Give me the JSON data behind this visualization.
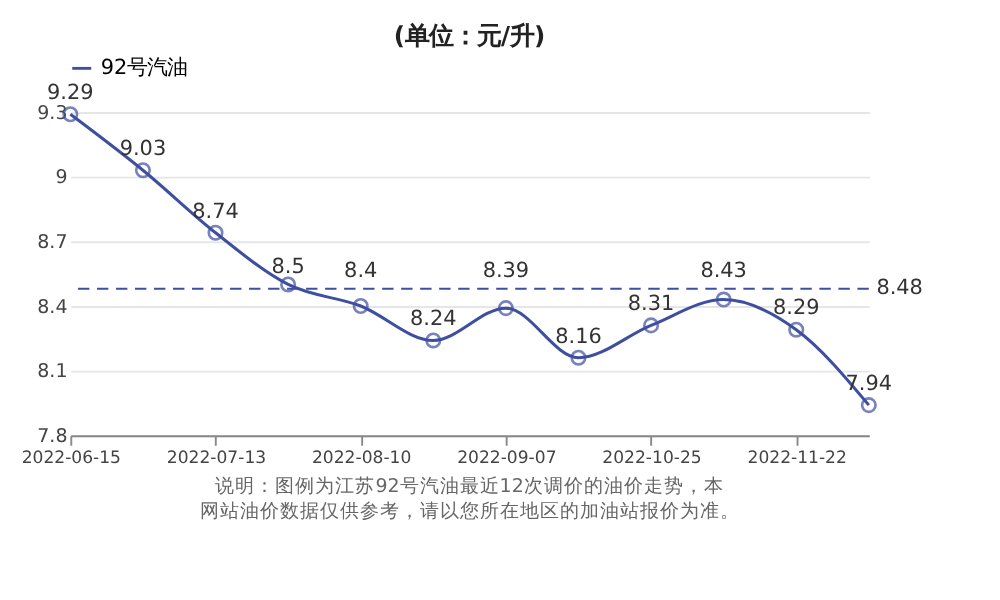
{
  "chart_data": {
    "type": "line",
    "title": "(单位：元/升)",
    "categories": [
      "2022-06-15",
      null,
      "2022-07-13",
      null,
      "2022-08-10",
      null,
      "2022-09-07",
      null,
      "2022-10-25",
      null,
      "2022-11-22",
      null
    ],
    "series": [
      {
        "name": "92号汽油",
        "color": "#3f4f9f",
        "values": [
          9.29,
          9.03,
          8.74,
          8.5,
          8.4,
          8.24,
          8.39,
          8.16,
          8.31,
          8.43,
          8.29,
          7.94
        ]
      }
    ],
    "ylim": [
      7.8,
      9.3
    ],
    "yticks": [
      7.8,
      8.1,
      8.4,
      8.7,
      9,
      9.3
    ],
    "ref_lines": [
      {
        "axis": "y",
        "value": 8.48,
        "label": "8.48",
        "color": "#3f4f9f",
        "line_style": "dashed"
      }
    ],
    "annotations": [
      "说明：图例为江苏92号汽油最近12次调价的油价走势，本网站油价数据仅供参考，请以您所在地区的加油站报价为准。"
    ],
    "data_labels": true,
    "grid": "y",
    "legend": "top",
    "marker": "circle",
    "line_style": "solid"
  }
}
